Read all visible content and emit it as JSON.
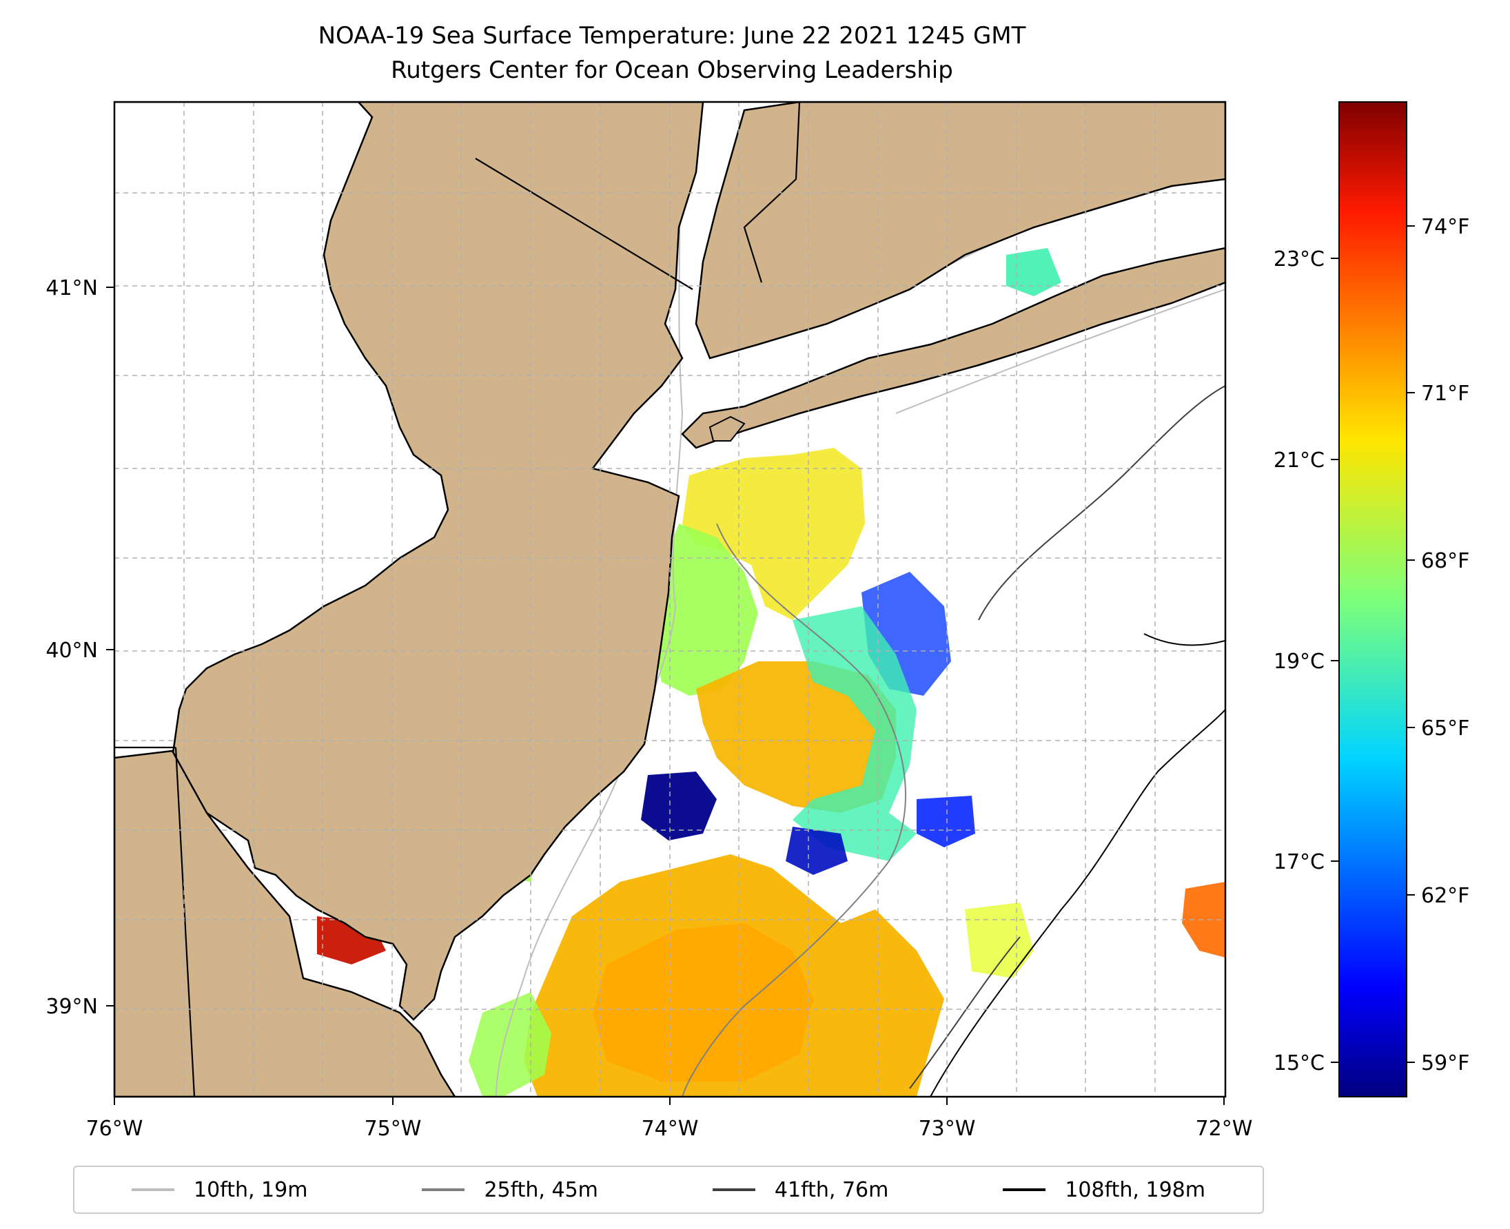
{
  "title": {
    "line1": "NOAA-19 Sea Surface Temperature: June 22 2021 1245 GMT",
    "line2": "Rutgers Center for Ocean Observing Leadership"
  },
  "axes": {
    "lon_ticks": [
      "76°W",
      "75°W",
      "74°W",
      "73°W",
      "72°W"
    ],
    "lat_ticks": [
      "41°N",
      "40°N",
      "39°N"
    ],
    "lon_range": [
      -76,
      -72
    ],
    "lat_range": [
      38.7,
      41.5
    ],
    "gridlines": true
  },
  "colorbar": {
    "celsius_ticks": [
      "23°C",
      "21°C",
      "19°C",
      "17°C",
      "15°C"
    ],
    "fahrenheit_ticks": [
      "74°F",
      "71°F",
      "68°F",
      "65°F",
      "62°F",
      "59°F"
    ],
    "colormap": "jet"
  },
  "legend": {
    "items": [
      {
        "label": "10fth, 19m",
        "color": "#bdbdbd"
      },
      {
        "label": "25fth, 45m",
        "color": "#808080"
      },
      {
        "label": "41fth, 76m",
        "color": "#404040"
      },
      {
        "label": "108fth, 198m",
        "color": "#000000"
      }
    ]
  },
  "colors": {
    "land": "#d2b48c",
    "ocean": "#ffffff",
    "warm_water": "#f7b500",
    "mid_water": "#9eff50",
    "cool_water": "#00008c"
  }
}
